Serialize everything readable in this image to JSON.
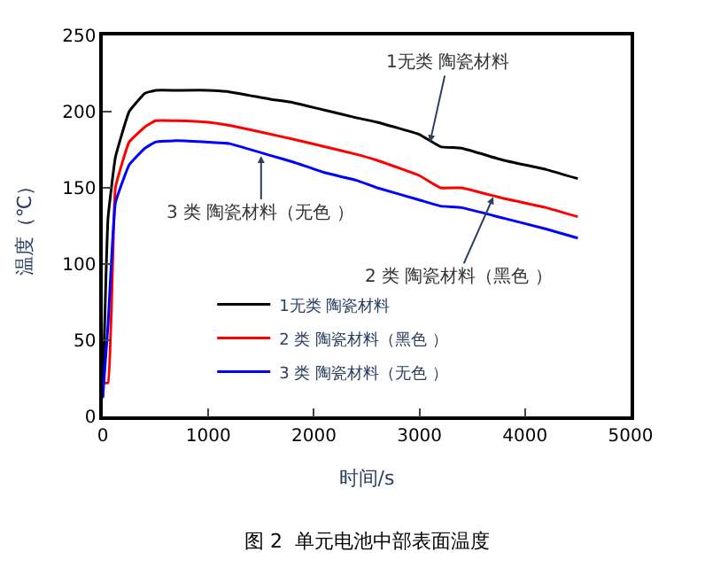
{
  "chart_data": {
    "type": "line",
    "xlabel": "时间/s",
    "ylabel": "温度（℃）",
    "x": [
      0,
      50,
      120,
      250,
      400,
      500,
      700,
      1000,
      1200,
      1600,
      1800,
      2100,
      2400,
      2600,
      3000,
      3200,
      3400,
      3800,
      4200,
      4500
    ],
    "series": [
      {
        "name": "1无类 陶瓷材料",
        "color": "#000000",
        "values": [
          13,
          130,
          170,
          200,
          212,
          214,
          214,
          214,
          213,
          208,
          206,
          201,
          196,
          193,
          185,
          177,
          176,
          168,
          162,
          156
        ]
      },
      {
        "name": "2 类 陶瓷材料（黑色 ）",
        "color": "#ff0000",
        "values": [
          22,
          22,
          150,
          180,
          190,
          194,
          194,
          193,
          191,
          185,
          182,
          177,
          172,
          168,
          158,
          150,
          150,
          143,
          137,
          131
        ]
      },
      {
        "name": "3 类 陶瓷材料（无色 ）",
        "color": "#0000ff",
        "values": [
          12,
          60,
          140,
          165,
          176,
          180,
          181,
          180,
          179,
          171,
          167,
          160,
          155,
          150,
          142,
          138,
          137,
          130,
          123,
          117
        ]
      }
    ],
    "xlim": [
      0,
      5000
    ],
    "xticks": [
      0,
      1000,
      2000,
      3000,
      4000,
      5000
    ],
    "ylim": [
      0,
      250
    ],
    "yticks": [
      0,
      50,
      100,
      150,
      200,
      250
    ],
    "legend": "bottom",
    "marker": "none",
    "line_style": "solid",
    "annotations": [
      {
        "text": "1无类 陶瓷材料",
        "x": 3100,
        "y": 180
      },
      {
        "text": "3 类 陶瓷材料（无色 ）",
        "x": 1500,
        "y": 171
      },
      {
        "text": "2 类 陶瓷材料（黑色 ）",
        "x": 3700,
        "y": 144
      },
      "图 2  单元电池中部表面温度"
    ]
  }
}
